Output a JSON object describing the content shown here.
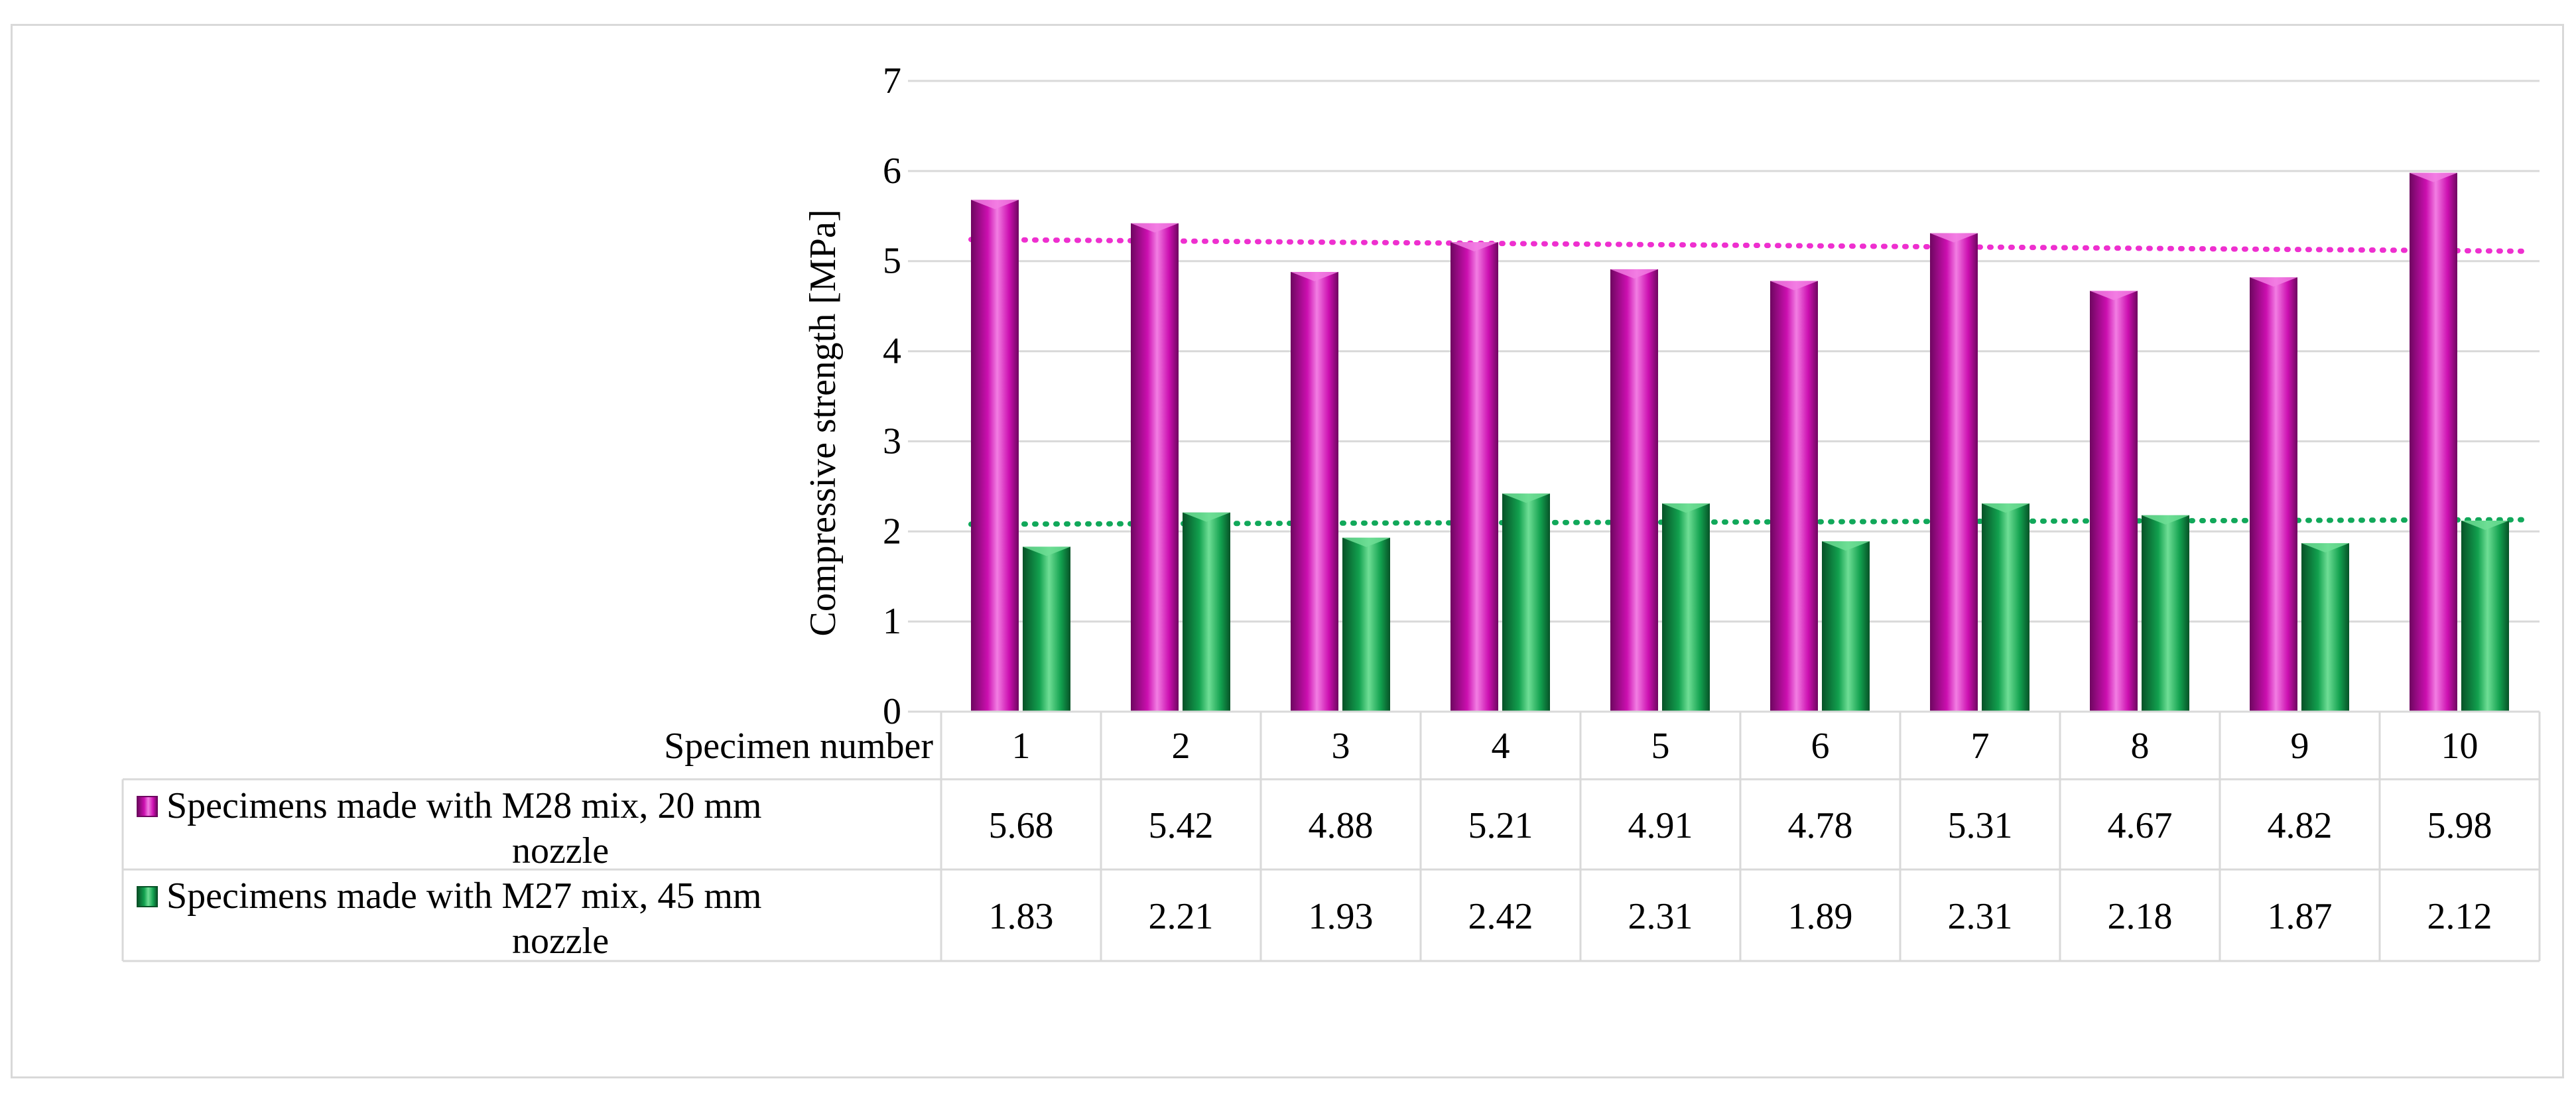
{
  "chart_data": {
    "type": "bar",
    "title": "",
    "xlabel": "Specimen number",
    "ylabel": "Compressive strength [MPa]",
    "ylim": [
      0,
      7
    ],
    "yticks": [
      0,
      1,
      2,
      3,
      4,
      5,
      6,
      7
    ],
    "grid": true,
    "categories": [
      "1",
      "2",
      "3",
      "4",
      "5",
      "6",
      "7",
      "8",
      "9",
      "10"
    ],
    "series": [
      {
        "name": "Specimens made with M28 mix, 20 mm nozzle",
        "legend_lines": [
          "Specimens made with M28 mix, 20 mm",
          "nozzle"
        ],
        "color": "#cc0fb0",
        "dark": "#6e0760",
        "light": "#f27ee3",
        "values": [
          5.68,
          5.42,
          4.88,
          5.21,
          4.91,
          4.78,
          5.31,
          4.67,
          4.82,
          5.98
        ],
        "value_labels": [
          "5.68",
          "5.42",
          "4.88",
          "5.21",
          "4.91",
          "4.78",
          "5.31",
          "4.67",
          "4.82",
          "5.98"
        ],
        "trendline": {
          "type": "linear",
          "style": "dotted",
          "color": "#ee2fcf",
          "start": 5.24,
          "end": 5.11
        }
      },
      {
        "name": "Specimens made with M27 mix, 45 mm nozzle",
        "legend_lines": [
          "Specimens made with M27 mix, 45 mm",
          "nozzle"
        ],
        "color": "#12a14f",
        "dark": "#075227",
        "light": "#6fde95",
        "values": [
          1.83,
          2.21,
          1.93,
          2.42,
          2.31,
          1.89,
          2.31,
          2.18,
          1.87,
          2.12
        ],
        "value_labels": [
          "1.83",
          "2.21",
          "1.93",
          "2.42",
          "2.31",
          "1.89",
          "2.31",
          "2.18",
          "1.87",
          "2.12"
        ],
        "trendline": {
          "type": "linear",
          "style": "dotted",
          "color": "#11a85a",
          "start": 2.08,
          "end": 2.13
        }
      }
    ],
    "data_table": true
  }
}
